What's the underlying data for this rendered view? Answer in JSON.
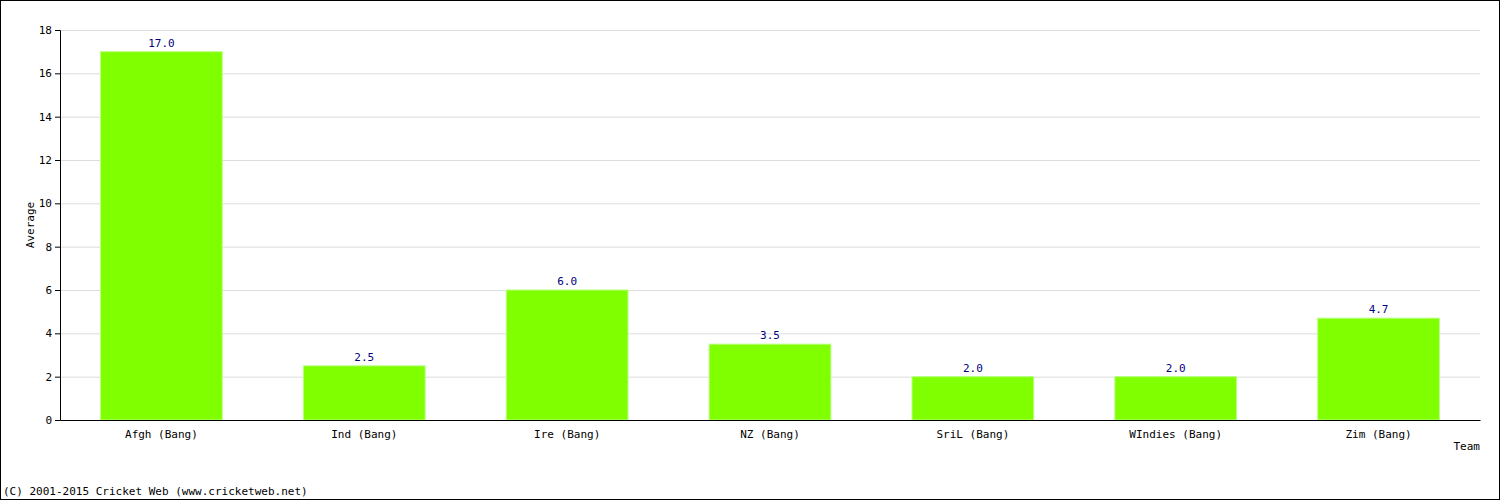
{
  "chart_data": {
    "type": "bar",
    "x_label": "Team",
    "y_label": "Average",
    "categories": [
      "Afgh (Bang)",
      "Ind (Bang)",
      "Ire (Bang)",
      "NZ (Bang)",
      "SriL (Bang)",
      "WIndies (Bang)",
      "Zim (Bang)"
    ],
    "values": [
      17,
      2.5,
      6,
      3.5,
      2,
      2,
      4.7
    ],
    "value_labels": [
      "17.0",
      "2.5",
      "6.0",
      "3.5",
      "2.0",
      "2.0",
      "4.7"
    ],
    "data_labels": true,
    "color": "#80ff00",
    "ylim": [
      0,
      18
    ],
    "yticks": [
      0,
      2,
      4,
      6,
      8,
      10,
      12,
      14,
      16,
      18
    ],
    "grid": true,
    "annotations": [
      "(C) 2001-2015 Cricket Web (www.cricketweb.net)"
    ]
  }
}
